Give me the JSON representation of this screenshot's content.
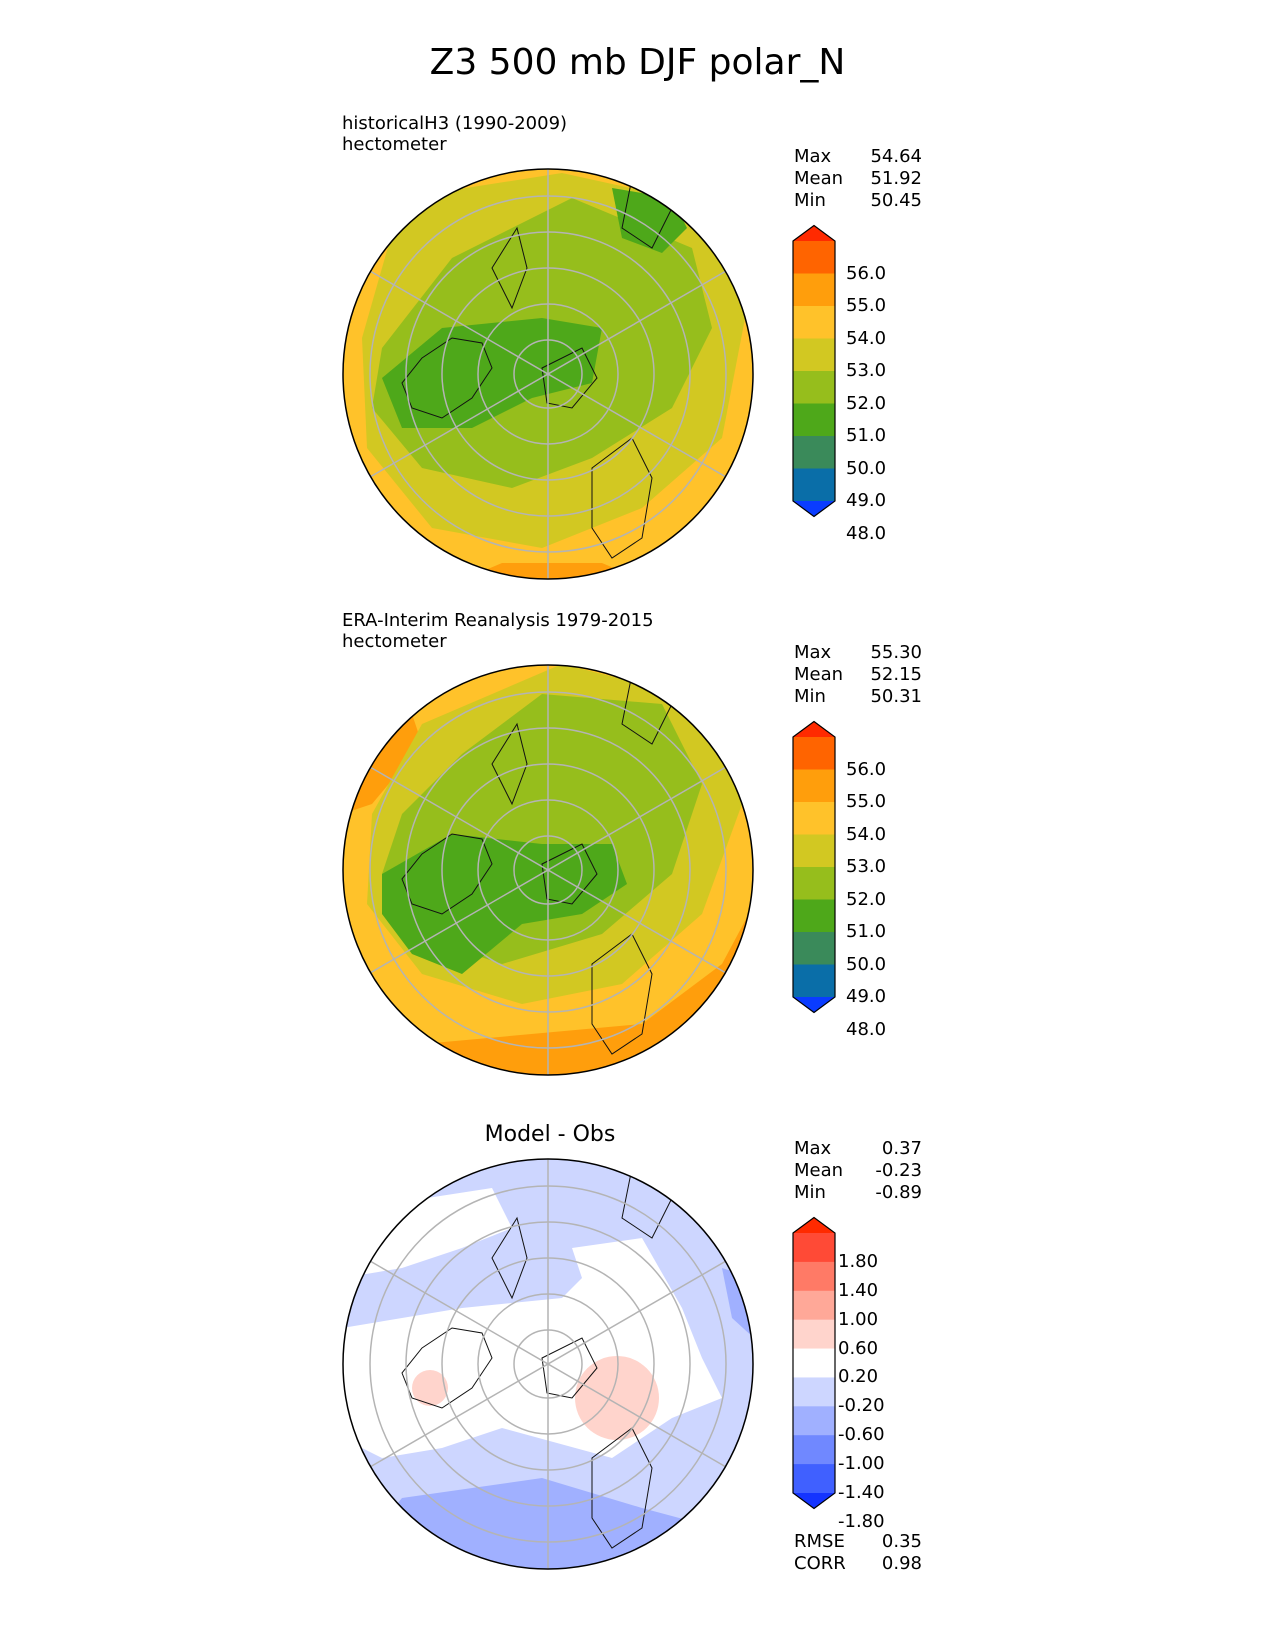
{
  "title": "Z3 500 mb DJF polar_N",
  "panels": [
    {
      "subtitle": "historicalH3 (1990-2009)",
      "units": "hectometer",
      "stats": [
        {
          "label": "Max",
          "value": "54.64"
        },
        {
          "label": "Mean",
          "value": "51.92"
        },
        {
          "label": "Min",
          "value": "50.45"
        }
      ],
      "colorbar": {
        "ticks": [
          "56.0",
          "55.0",
          "54.0",
          "53.0",
          "52.0",
          "51.0",
          "50.0",
          "49.0",
          "48.0"
        ],
        "colors": [
          "#ff2a00",
          "#ff6400",
          "#ff9e0c",
          "#ffc22a",
          "#d2c822",
          "#96be1c",
          "#4ea81a",
          "#3a8a5a",
          "#0a6ea8",
          "#0a3cff"
        ]
      }
    },
    {
      "subtitle": "ERA-Interim Reanalysis 1979-2015",
      "units": "hectometer",
      "stats": [
        {
          "label": "Max",
          "value": "55.30"
        },
        {
          "label": "Mean",
          "value": "52.15"
        },
        {
          "label": "Min",
          "value": "50.31"
        }
      ],
      "colorbar": {
        "ticks": [
          "56.0",
          "55.0",
          "54.0",
          "53.0",
          "52.0",
          "51.0",
          "50.0",
          "49.0",
          "48.0"
        ],
        "colors": [
          "#ff2a00",
          "#ff6400",
          "#ff9e0c",
          "#ffc22a",
          "#d2c822",
          "#96be1c",
          "#4ea81a",
          "#3a8a5a",
          "#0a6ea8",
          "#0a3cff"
        ]
      }
    },
    {
      "heading": "Model - Obs",
      "stats": [
        {
          "label": "Max",
          "value": "0.37"
        },
        {
          "label": "Mean",
          "value": "-0.23"
        },
        {
          "label": "Min",
          "value": "-0.89"
        }
      ],
      "colorbar": {
        "ticks": [
          "1.80",
          "1.40",
          "1.00",
          "0.60",
          "0.20",
          "-0.20",
          "-0.60",
          "-1.00",
          "-1.40",
          "-1.80"
        ],
        "colors": [
          "#ff2a00",
          "#ff4a36",
          "#ff7a66",
          "#ffa898",
          "#ffd4cc",
          "#ffffff",
          "#cdd6ff",
          "#a0b0ff",
          "#7088ff",
          "#4060ff",
          "#1434ff"
        ]
      },
      "metrics": [
        {
          "label": "RMSE",
          "value": "0.35"
        },
        {
          "label": "CORR",
          "value": "0.98"
        }
      ]
    }
  ],
  "map_colors": {
    "panel1": {
      "outer": "#ffc22a",
      "ring": "#d2c822",
      "mid": "#96be1c",
      "core": "#4ea81a",
      "edge": "#ff9e0c"
    },
    "panel2": {
      "outer": "#ffc22a",
      "ring": "#d2c822",
      "mid": "#96be1c",
      "core": "#4ea81a",
      "edge": "#ff9e0c"
    },
    "panel3": {
      "base": "#cdd6ff",
      "white": "#ffffff",
      "deep": "#a0b0ff",
      "pink": "#ffd4cc",
      "pinkdeep": "#ffa898"
    }
  }
}
